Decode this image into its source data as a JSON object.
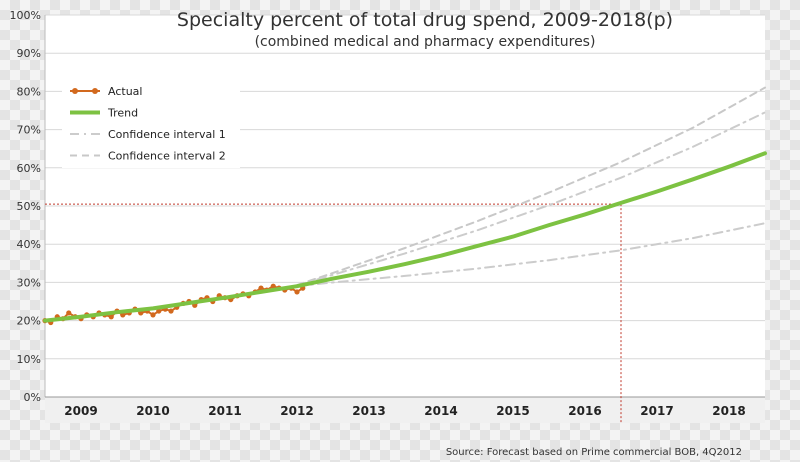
{
  "chart_data": {
    "type": "line",
    "title": "Specialty percent of total drug spend, 2009-2018(p)",
    "subtitle": "(combined medical and pharmacy expenditures)",
    "source": "Source: Forecast based on Prime commercial BOB, 4Q2012",
    "x_categories": [
      "2009",
      "2010",
      "2011",
      "2012",
      "2013",
      "2014",
      "2015",
      "2016",
      "2017",
      "2018"
    ],
    "xlim": [
      2009,
      2019
    ],
    "ylim": [
      0,
      100
    ],
    "y_ticks": [
      "0%",
      "10%",
      "20%",
      "30%",
      "40%",
      "50%",
      "60%",
      "70%",
      "80%",
      "90%",
      "100%"
    ],
    "grid": true,
    "legend_position": "top-left",
    "colors": {
      "actual": "#d2691e",
      "trend": "#7dc242",
      "ci1": "#cccccc",
      "ci2": "#c8c8c8",
      "reference": "#c0392b",
      "grid": "#d8d8d8"
    },
    "reference_point": {
      "x": 2017.0,
      "y": 50.5
    },
    "series": [
      {
        "name": "Actual",
        "style": "line-markers",
        "x": [
          2009.0,
          2009.08,
          2009.17,
          2009.25,
          2009.33,
          2009.42,
          2009.5,
          2009.58,
          2009.67,
          2009.75,
          2009.83,
          2009.92,
          2010.0,
          2010.08,
          2010.17,
          2010.25,
          2010.33,
          2010.42,
          2010.5,
          2010.58,
          2010.67,
          2010.75,
          2010.83,
          2010.92,
          2011.0,
          2011.08,
          2011.17,
          2011.25,
          2011.33,
          2011.42,
          2011.5,
          2011.58,
          2011.67,
          2011.75,
          2011.83,
          2011.92,
          2012.0,
          2012.08,
          2012.17,
          2012.25,
          2012.33,
          2012.42,
          2012.5,
          2012.58
        ],
        "values": [
          20.0,
          19.5,
          21.0,
          20.5,
          22.0,
          21.0,
          20.5,
          21.5,
          21.0,
          22.0,
          21.5,
          21.0,
          22.5,
          21.5,
          22.0,
          23.0,
          22.0,
          22.5,
          21.5,
          22.5,
          23.0,
          22.5,
          23.5,
          24.5,
          25.0,
          24.0,
          25.5,
          26.0,
          25.0,
          26.5,
          26.0,
          25.5,
          26.5,
          27.0,
          26.5,
          27.5,
          28.5,
          28.0,
          29.0,
          28.5,
          28.0,
          28.5,
          27.5,
          28.5
        ]
      },
      {
        "name": "Trend",
        "style": "solid",
        "x": [
          2009.0,
          2009.5,
          2010.0,
          2010.5,
          2011.0,
          2011.5,
          2012.0,
          2012.5,
          2013.0,
          2013.5,
          2014.0,
          2014.5,
          2015.0,
          2015.5,
          2016.0,
          2016.5,
          2017.0,
          2017.5,
          2018.0,
          2018.5,
          2019.0
        ],
        "values": [
          20.0,
          21.0,
          22.2,
          23.2,
          24.6,
          26.0,
          27.5,
          29.0,
          31.0,
          32.8,
          34.8,
          37.0,
          39.5,
          42.0,
          45.0,
          47.8,
          50.8,
          53.8,
          57.0,
          60.3,
          63.8
        ]
      },
      {
        "name": "Confidence interval 1",
        "style": "dash-dot",
        "x": [
          2012.5,
          2013.0,
          2014.0,
          2015.0,
          2016.0,
          2017.0,
          2018.0,
          2019.0
        ],
        "values": [
          29.0,
          30.0,
          31.7,
          33.6,
          35.8,
          38.4,
          41.6,
          45.5
        ]
      },
      {
        "name": "Confidence interval 1",
        "style": "dash-dot",
        "x": [
          2012.5,
          2013.0,
          2014.0,
          2015.0,
          2016.0,
          2017.0,
          2018.0,
          2019.0
        ],
        "values": [
          29.2,
          32.0,
          37.6,
          43.6,
          50.2,
          57.4,
          65.5,
          74.5
        ]
      },
      {
        "name": "Confidence interval 2",
        "style": "dashed",
        "x": [
          2012.5,
          2013.0,
          2014.0,
          2015.0,
          2016.0,
          2017.0,
          2018.0,
          2019.0
        ],
        "values": [
          29.3,
          32.5,
          39.0,
          46.0,
          53.5,
          61.5,
          70.5,
          81.0
        ]
      }
    ]
  }
}
